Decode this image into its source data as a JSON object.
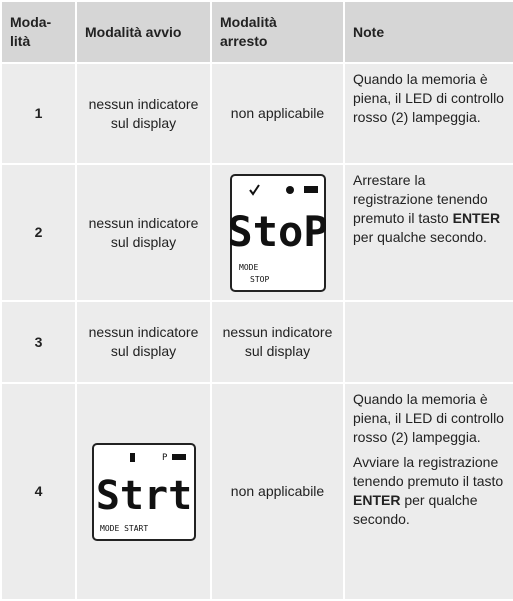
{
  "table": {
    "header": [
      "Moda-\nlità",
      "Modalità avvio",
      "Modalità\narresto",
      "Note"
    ],
    "rows": [
      {
        "num": "1",
        "start": "nessun indicatore sul display",
        "stop": "non applicabile",
        "note": [
          [
            "Quando la memoria è piena, il LED di controllo rosso (2) lampeggia."
          ]
        ]
      },
      {
        "num": "2",
        "start": "nessun indicatore sul display",
        "stop": {
          "display": "StoP",
          "mode": "MODE",
          "status": "STOP"
        },
        "note": [
          [
            "Arrestare la registrazione tenendo premuto il tasto ",
            "ENTER",
            " per qualche secondo."
          ]
        ]
      },
      {
        "num": "3",
        "start": "nessun indicatore sul display",
        "stop": "nessun indicatore sul display",
        "note": []
      },
      {
        "num": "4",
        "start": {
          "display": "Strt",
          "indicator": "P",
          "mode": "MODE START"
        },
        "stop": "non applicabile",
        "note": [
          [
            "Quando la memoria è piena, il LED di controllo rosso (2) lampeggia."
          ],
          [
            "Avviare la registrazione tenendo premuto il tasto ",
            "ENTER",
            " per qualche secondo."
          ]
        ]
      }
    ]
  }
}
